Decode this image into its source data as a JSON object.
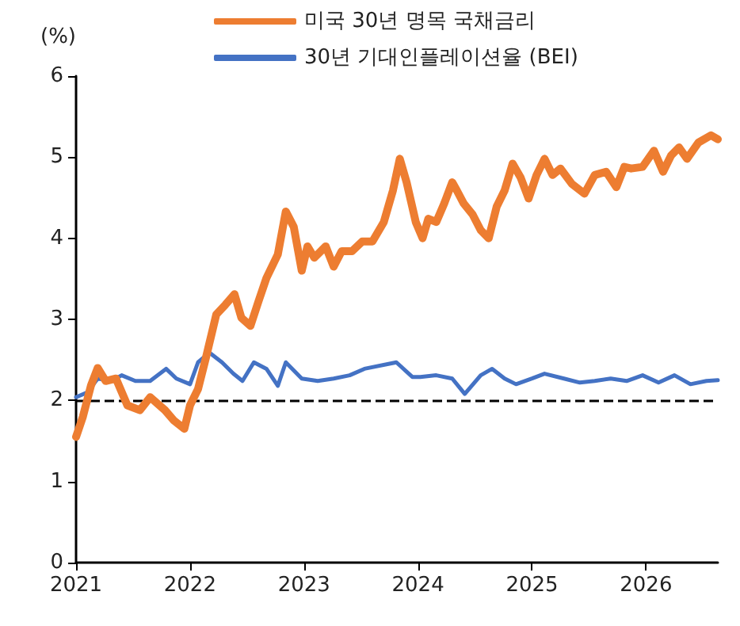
{
  "chart_data": {
    "type": "line",
    "ylabel": "(%)",
    "xlim": [
      2021,
      2026.63
    ],
    "xticks": [
      2021,
      2022,
      2023,
      2024,
      2025,
      2026
    ],
    "ylim": [
      0,
      6
    ],
    "yticks": [
      0,
      1,
      2,
      3,
      4,
      5,
      6
    ],
    "grid": false,
    "legend": "top",
    "marker": "none",
    "line_style": "solid",
    "ref_lines": [
      {
        "axis": "y",
        "value": 2,
        "label": null,
        "color": "#000000",
        "line_style": "dashed"
      }
    ],
    "series": [
      {
        "name": "미국 30년 명목 국채금리",
        "color": "#ed7d31",
        "x": [
          2021.0,
          2021.06,
          2021.13,
          2021.19,
          2021.26,
          2021.35,
          2021.45,
          2021.56,
          2021.65,
          2021.78,
          2021.86,
          2021.95,
          2022.0,
          2022.07,
          2022.14,
          2022.23,
          2022.31,
          2022.39,
          2022.45,
          2022.53,
          2022.6,
          2022.67,
          2022.77,
          2022.84,
          2022.91,
          2022.98,
          2023.03,
          2023.09,
          2023.19,
          2023.26,
          2023.33,
          2023.42,
          2023.51,
          2023.6,
          2023.7,
          2023.78,
          2023.84,
          2023.9,
          2023.98,
          2024.04,
          2024.09,
          2024.16,
          2024.23,
          2024.3,
          2024.34,
          2024.4,
          2024.48,
          2024.55,
          2024.62,
          2024.69,
          2024.76,
          2024.83,
          2024.9,
          2024.97,
          2025.04,
          2025.11,
          2025.18,
          2025.25,
          2025.35,
          2025.46,
          2025.55,
          2025.65,
          2025.74,
          2025.81,
          2025.87,
          2025.97,
          2026.07,
          2026.15,
          2026.22,
          2026.29,
          2026.36,
          2026.46,
          2026.57,
          2026.63
        ],
        "values": [
          1.55,
          1.8,
          2.18,
          2.4,
          2.24,
          2.27,
          1.94,
          1.88,
          2.04,
          1.88,
          1.75,
          1.65,
          1.94,
          2.14,
          2.53,
          3.06,
          3.18,
          3.31,
          3.02,
          2.92,
          3.22,
          3.51,
          3.8,
          4.33,
          4.14,
          3.6,
          3.9,
          3.76,
          3.9,
          3.65,
          3.84,
          3.84,
          3.96,
          3.96,
          4.2,
          4.59,
          4.98,
          4.69,
          4.2,
          4.0,
          4.24,
          4.2,
          4.43,
          4.69,
          4.59,
          4.43,
          4.29,
          4.1,
          4.0,
          4.39,
          4.59,
          4.92,
          4.75,
          4.49,
          4.78,
          4.98,
          4.78,
          4.86,
          4.67,
          4.55,
          4.78,
          4.82,
          4.63,
          4.88,
          4.86,
          4.88,
          5.08,
          4.82,
          5.02,
          5.12,
          4.98,
          5.18,
          5.27,
          5.22
        ]
      },
      {
        "name": "30년 기대인플레이션율 (BEI)",
        "color": "#4472c4",
        "x": [
          2021.0,
          2021.1,
          2021.19,
          2021.31,
          2021.4,
          2021.52,
          2021.65,
          2021.79,
          2021.88,
          2022.0,
          2022.07,
          2022.17,
          2022.28,
          2022.38,
          2022.46,
          2022.56,
          2022.67,
          2022.77,
          2022.84,
          2022.98,
          2023.12,
          2023.26,
          2023.4,
          2023.53,
          2023.81,
          2023.95,
          2024.02,
          2024.16,
          2024.3,
          2024.41,
          2024.55,
          2024.65,
          2024.76,
          2024.86,
          2025.0,
          2025.11,
          2025.28,
          2025.42,
          2025.55,
          2025.69,
          2025.83,
          2025.97,
          2026.11,
          2026.25,
          2026.39,
          2026.53,
          2026.63
        ],
        "values": [
          2.04,
          2.1,
          2.27,
          2.24,
          2.31,
          2.24,
          2.24,
          2.39,
          2.27,
          2.2,
          2.47,
          2.59,
          2.47,
          2.33,
          2.24,
          2.47,
          2.39,
          2.18,
          2.47,
          2.27,
          2.24,
          2.27,
          2.31,
          2.39,
          2.47,
          2.29,
          2.29,
          2.31,
          2.27,
          2.08,
          2.31,
          2.39,
          2.27,
          2.2,
          2.27,
          2.33,
          2.27,
          2.22,
          2.24,
          2.27,
          2.24,
          2.31,
          2.22,
          2.31,
          2.2,
          2.24,
          2.25
        ]
      }
    ]
  }
}
